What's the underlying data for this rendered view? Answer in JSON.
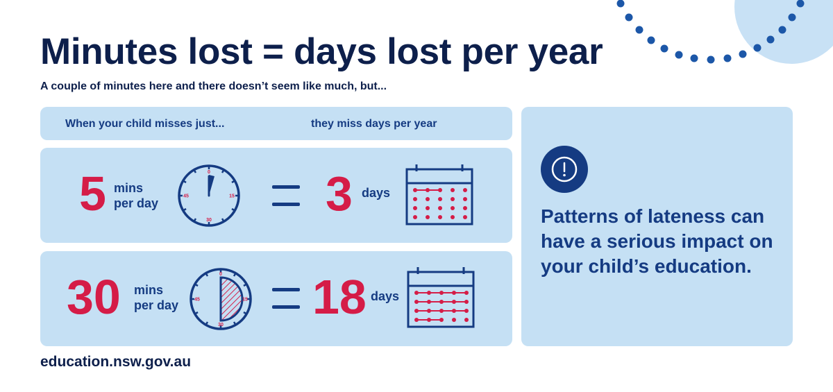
{
  "title": "Minutes lost = days lost per year",
  "subtitle": "A couple of minutes here and there doesn’t seem like much, but...",
  "table_header": {
    "left": "When your child misses just...",
    "right": "they miss days per year"
  },
  "rows": [
    {
      "minutes": "5",
      "minutes_unit_line1": "mins",
      "minutes_unit_line2": "per day",
      "days": "3",
      "days_unit": "days",
      "clock_ticks": {
        "top": "0",
        "right": "15",
        "bottom": "30",
        "left": "45"
      }
    },
    {
      "minutes": "30",
      "minutes_unit_line1": "mins",
      "minutes_unit_line2": "per day",
      "days": "18",
      "days_unit": "days",
      "clock_ticks": {
        "top": "0",
        "right": "15",
        "bottom": "30",
        "left": "45"
      }
    }
  ],
  "callout": {
    "icon": "alert-circle-icon",
    "text": "Patterns of lateness can have a serious impact on your child’s education."
  },
  "footer_url": "education.nsw.gov.au",
  "colors": {
    "panel": "#c5e0f4",
    "navy": "#153b82",
    "title": "#0d1f4b",
    "accent_red": "#d51c47",
    "deco_circle": "#c8e1f5",
    "deco_dots": "#1c57a8"
  }
}
